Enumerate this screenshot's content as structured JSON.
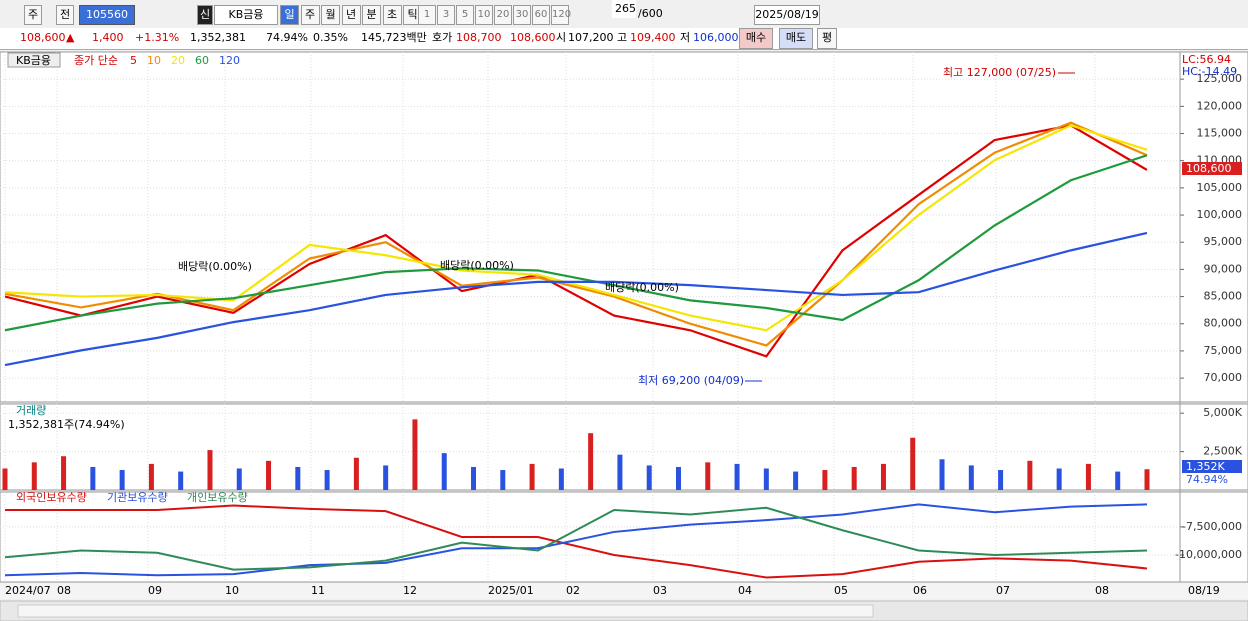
{
  "toolbar": {
    "tabs": [
      "주",
      "전"
    ],
    "code": "105560",
    "badge": "신",
    "name": "KB금융",
    "periods": [
      "일",
      "주",
      "월",
      "년",
      "분",
      "초",
      "틱"
    ],
    "intervals": [
      "1",
      "3",
      "5",
      "10",
      "20",
      "30",
      "60",
      "120"
    ],
    "count": "265",
    "max": "/600",
    "date": "2025/08/19"
  },
  "quote": {
    "price": "108,600",
    "arrow": "▲",
    "change": "1,400",
    "rate": "+1.31%",
    "volume": "1,352,381",
    "vol_ratio": "74.94%",
    "turnover": "0.35%",
    "amount": "145,723백만",
    "ask_label": "호가",
    "ask": "108,700",
    "bid": "108,600",
    "open_label": "시",
    "open": "107,200",
    "high_label": "고",
    "high": "109,400",
    "low_label": "저",
    "low": "106,000",
    "buy": "매수",
    "sell": "매도",
    "eval": "평"
  },
  "chart_data": [
    {
      "type": "line",
      "title": "KB금융",
      "subtitle": "종가 단순",
      "ylim": [
        65600,
        130000
      ],
      "yticks": [
        {
          "value": 70000,
          "label": "70,000"
        },
        {
          "value": 75000,
          "label": "75,000"
        },
        {
          "value": 80000,
          "label": "80,000"
        },
        {
          "value": 85000,
          "label": "85,000"
        },
        {
          "value": 90000,
          "label": "90,000"
        },
        {
          "value": 95000,
          "label": "95,000"
        },
        {
          "value": 100000,
          "label": "100,000"
        },
        {
          "value": 105000,
          "label": "105,000"
        },
        {
          "value": 110000,
          "label": "110,000"
        },
        {
          "value": 115000,
          "label": "115,000"
        },
        {
          "value": 120000,
          "label": "120,000"
        },
        {
          "value": 125000,
          "label": "125,000"
        }
      ],
      "series": [
        {
          "name": "5",
          "color": "#e00000",
          "values": [
            85000,
            81500,
            85000,
            82000,
            91000,
            96300,
            86000,
            89000,
            81500,
            78800,
            74000,
            93500,
            103700,
            113800,
            116500,
            108300
          ]
        },
        {
          "name": "10",
          "color": "#f08c00",
          "values": [
            85500,
            83000,
            85500,
            82500,
            92000,
            95000,
            87000,
            88500,
            85000,
            80000,
            76000,
            88000,
            102000,
            111500,
            117000,
            111000
          ]
        },
        {
          "name": "20",
          "color": "#f5e600",
          "values": [
            85800,
            85000,
            85300,
            84300,
            94500,
            92600,
            89800,
            89000,
            85300,
            81500,
            78800,
            88000,
            100000,
            110100,
            116500,
            112000
          ]
        },
        {
          "name": "60",
          "color": "#1e9a3c",
          "values": [
            78800,
            81500,
            83700,
            84700,
            87100,
            89500,
            90200,
            89800,
            87100,
            84300,
            82900,
            80700,
            88000,
            98100,
            106400,
            111000
          ]
        },
        {
          "name": "120",
          "color": "#2a52e0",
          "values": [
            72400,
            75100,
            77400,
            80300,
            82500,
            85300,
            86700,
            87700,
            87700,
            87100,
            86200,
            85300,
            85800,
            89800,
            93500,
            96700
          ]
        }
      ],
      "annotations": [
        "최고 127,000 (07/25)",
        "최저 69,200 (04/09)",
        "배당락(0.00%)",
        "배당락(0.00%)",
        "배당락(0.00%)"
      ],
      "indicators": [
        "LC:56.94",
        "HC:-14.49"
      ],
      "last_label": "108,600"
    },
    {
      "type": "bar",
      "title": "거래량",
      "subtitle": "1,352,381주(74.94%)",
      "ylim": [
        0,
        5600
      ],
      "yticks": [
        {
          "value": 2500,
          "label": "2,500K"
        },
        {
          "value": 5000,
          "label": "5,000K"
        }
      ],
      "values": [
        1400,
        1800,
        2200,
        1500,
        1300,
        1700,
        1200,
        2600,
        1400,
        1900,
        1500,
        1300,
        2100,
        1600,
        4600,
        2400,
        1500,
        1300,
        1700,
        1400,
        3700,
        2300,
        1600,
        1500,
        1800,
        1700,
        1400,
        1200,
        1300,
        1500,
        1700,
        3400,
        2000,
        1600,
        1300,
        1900,
        1400,
        1700,
        1200,
        1352
      ],
      "last_label": "1,352K",
      "last_ratio": "74.94%"
    },
    {
      "type": "line",
      "ylim": [
        -12400000,
        -4400000
      ],
      "yticks": [
        {
          "value": -10000000,
          "label": "-10,000,000"
        },
        {
          "value": -7500000,
          "label": "-7,500,000"
        }
      ],
      "series": [
        {
          "name": "외국인보유수량",
          "color": "#d81010",
          "values": [
            -6000000,
            -6000000,
            -6000000,
            -5600000,
            -5900000,
            -6100000,
            -8400000,
            -8400000,
            -10000000,
            -10900000,
            -12000000,
            -11700000,
            -10600000,
            -10300000,
            -10500000,
            -11200000
          ]
        },
        {
          "name": "기관보유수량",
          "color": "#2a52e0",
          "values": [
            -11800000,
            -11600000,
            -11800000,
            -11700000,
            -10900000,
            -10700000,
            -9400000,
            -9400000,
            -7950000,
            -7300000,
            -6900000,
            -6400000,
            -5500000,
            -6200000,
            -5700000,
            -5500000
          ]
        },
        {
          "name": "개인보유수량",
          "color": "#2e8b57",
          "values": [
            -10200000,
            -9600000,
            -9800000,
            -11300000,
            -11100000,
            -10500000,
            -8900000,
            -9600000,
            -6000000,
            -6400000,
            -5800000,
            -7800000,
            -9600000,
            -10000000,
            -9800000,
            -9600000
          ]
        }
      ]
    }
  ],
  "timeline": {
    "labels": [
      "2024/07",
      "08",
      "09",
      "10",
      "11",
      "12",
      "2025/01",
      "02",
      "03",
      "04",
      "05",
      "06",
      "07",
      "08"
    ],
    "current": "08/19"
  }
}
